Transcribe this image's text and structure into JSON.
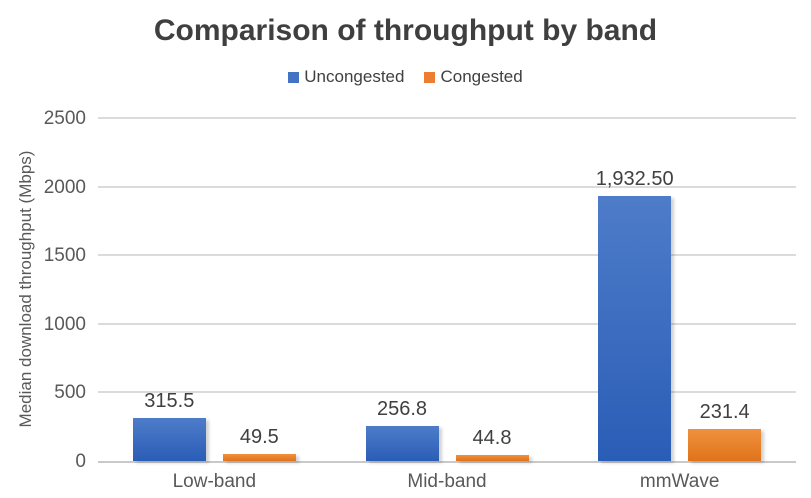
{
  "chart_data": {
    "type": "bar",
    "title": "Comparison of throughput by band",
    "xlabel": "",
    "ylabel": "Median download throughput (Mbps)",
    "categories": [
      "Low-band",
      "Mid-band",
      "mmWave"
    ],
    "series": [
      {
        "name": "Uncongested",
        "values": [
          315.5,
          256.8,
          1932.5
        ],
        "labels": [
          "315.5",
          "256.8",
          "1,932.50"
        ],
        "color": "#4472C4",
        "gradient_top": "#4E7CC9",
        "gradient_bottom": "#2A5DB6"
      },
      {
        "name": "Congested",
        "values": [
          49.5,
          44.8,
          231.4
        ],
        "labels": [
          "49.5",
          "44.8",
          "231.4"
        ],
        "color": "#ED7D31",
        "gradient_top": "#F0913E",
        "gradient_bottom": "#E0731A"
      }
    ],
    "ylim": [
      0,
      2500
    ],
    "yticks": [
      0,
      500,
      1000,
      1500,
      2000,
      2500
    ],
    "grid": true,
    "legend_position": "top",
    "colors": {
      "title_text": "#3F3F3F",
      "axis_text": "#595959",
      "data_label_text": "#404040",
      "gridline": "#DBDBDB"
    }
  }
}
